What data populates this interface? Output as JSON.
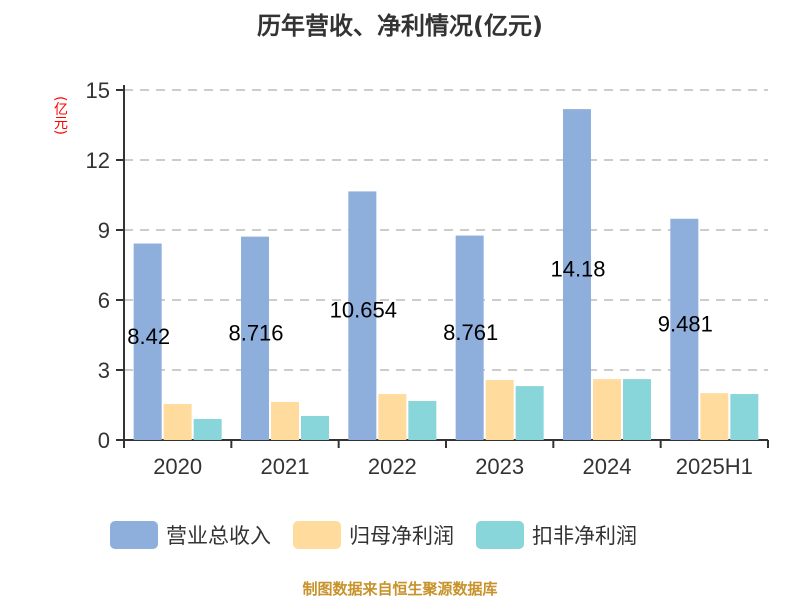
{
  "title": "历年营收、净利情况(亿元)",
  "unit_label": "(亿元)",
  "footer": "制图数据来自恒生聚源数据库",
  "legend": [
    {
      "label": "营业总收入",
      "color": "#8eaedc"
    },
    {
      "label": "归母净利润",
      "color": "#ffdc9e"
    },
    {
      "label": "扣非净利润",
      "color": "#88d6d9"
    }
  ],
  "chart_data": {
    "type": "bar",
    "title": "历年营收、净利情况(亿元)",
    "xlabel": "",
    "ylabel": "(亿元)",
    "ylim": [
      0,
      15
    ],
    "yticks": [
      0,
      3,
      6,
      9,
      12,
      15
    ],
    "grid": true,
    "legend_position": "bottom",
    "categories": [
      "2020",
      "2021",
      "2022",
      "2023",
      "2024",
      "2025H1"
    ],
    "series": [
      {
        "name": "营业总收入",
        "values": [
          8.42,
          8.716,
          10.654,
          8.761,
          14.18,
          9.481
        ],
        "color": "#8eaedc"
      },
      {
        "name": "归母净利润",
        "values": [
          1.54,
          1.63,
          1.97,
          2.57,
          2.61,
          2.01
        ],
        "color": "#ffdc9e"
      },
      {
        "name": "扣非净利润",
        "values": [
          0.9,
          1.03,
          1.67,
          2.31,
          2.61,
          1.97
        ],
        "color": "#88d6d9"
      }
    ],
    "data_labels": [
      "8.42",
      "8.716",
      "10.654",
      "8.761",
      "14.18",
      "9.481"
    ]
  }
}
